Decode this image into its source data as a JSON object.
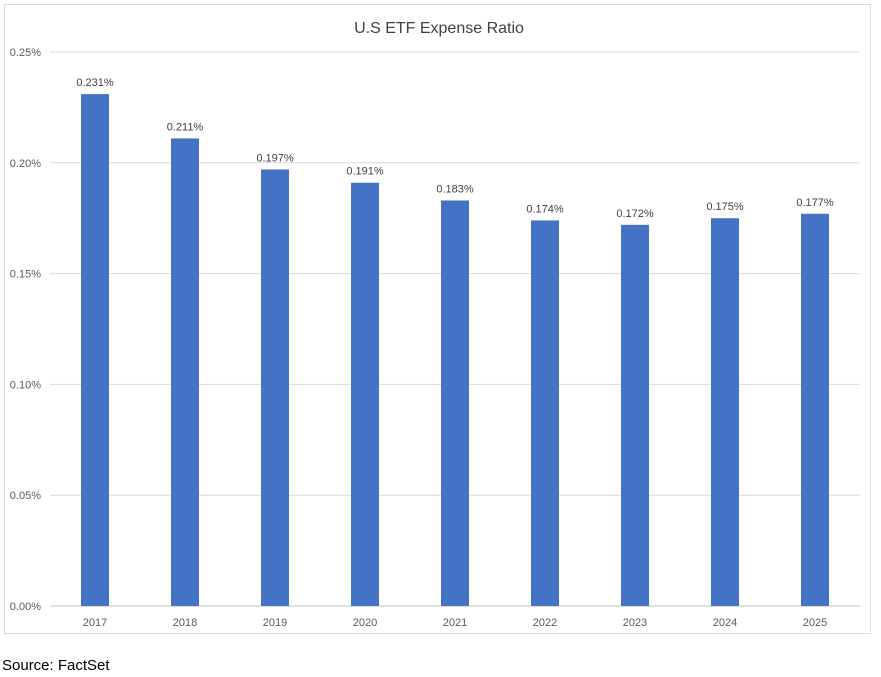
{
  "chart_data": {
    "type": "bar",
    "title": "U.S ETF Expense Ratio",
    "categories": [
      "2017",
      "2018",
      "2019",
      "2020",
      "2021",
      "2022",
      "2023",
      "2024",
      "2025"
    ],
    "values": [
      0.231,
      0.211,
      0.197,
      0.191,
      0.183,
      0.174,
      0.172,
      0.175,
      0.177
    ],
    "data_labels": [
      "0.231%",
      "0.211%",
      "0.197%",
      "0.191%",
      "0.183%",
      "0.174%",
      "0.172%",
      "0.175%",
      "0.177%"
    ],
    "ylim": [
      0,
      0.25
    ],
    "yticks": [
      0,
      0.05,
      0.1,
      0.15,
      0.2,
      0.25
    ],
    "ytick_labels": [
      "0.00%",
      "0.05%",
      "0.10%",
      "0.15%",
      "0.20%",
      "0.25%"
    ],
    "bar_color": "#4472C4",
    "grid": true,
    "legend": "none"
  },
  "footer": {
    "source": "Source: FactSet"
  }
}
